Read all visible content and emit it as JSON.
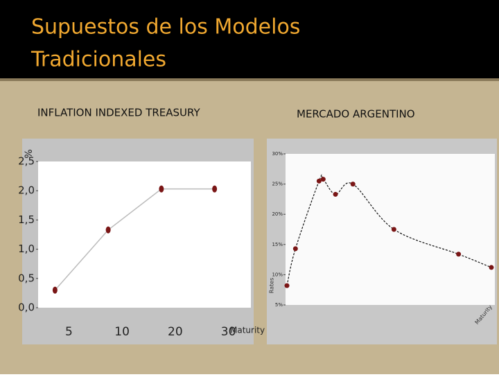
{
  "slide": {
    "title_lines": [
      "Supuestos de los Modelos",
      "Tradicionales"
    ]
  },
  "chart_data": [
    {
      "type": "line",
      "title": "INFLATION INDEXED TREASURY",
      "ylabel": "%",
      "xlabel": "Maturity",
      "categories": [
        "5",
        "10",
        "20",
        "30"
      ],
      "series": [
        {
          "color": "#7a1616",
          "values": [
            0.3,
            1.33,
            2.03,
            2.03
          ]
        }
      ],
      "ylim": [
        0,
        2.5
      ],
      "yticks": [
        {
          "value": 0,
          "label": "0,0"
        },
        {
          "value": 0.5,
          "label": "0,5"
        },
        {
          "value": 1,
          "label": "1,0"
        },
        {
          "value": 1.5,
          "label": "1,5"
        },
        {
          "value": 2,
          "label": "2,0"
        },
        {
          "value": 2.5,
          "label": "2,5"
        }
      ]
    },
    {
      "type": "curve",
      "title": "MERCADO ARGENTINO",
      "ylabel": "Rates",
      "xlabel": "Maturity",
      "x": [
        0.07,
        0.9,
        3.2,
        3.6,
        4.8,
        6.5,
        10.5,
        16.8,
        20
      ],
      "series": [
        {
          "color": "#7a1616",
          "values": [
            8.2,
            14.3,
            25.5,
            25.8,
            23.3,
            25.0,
            17.5,
            13.4,
            11.2
          ]
        }
      ],
      "xlim": [
        0,
        20
      ],
      "ylim": [
        5,
        30
      ],
      "yticks": [
        {
          "value": 5,
          "label": "5%"
        },
        {
          "value": 10,
          "label": "10%"
        },
        {
          "value": 15,
          "label": "15%"
        },
        {
          "value": 20,
          "label": "20%"
        },
        {
          "value": 25,
          "label": "25%"
        },
        {
          "value": 30,
          "label": "30%"
        }
      ]
    }
  ]
}
